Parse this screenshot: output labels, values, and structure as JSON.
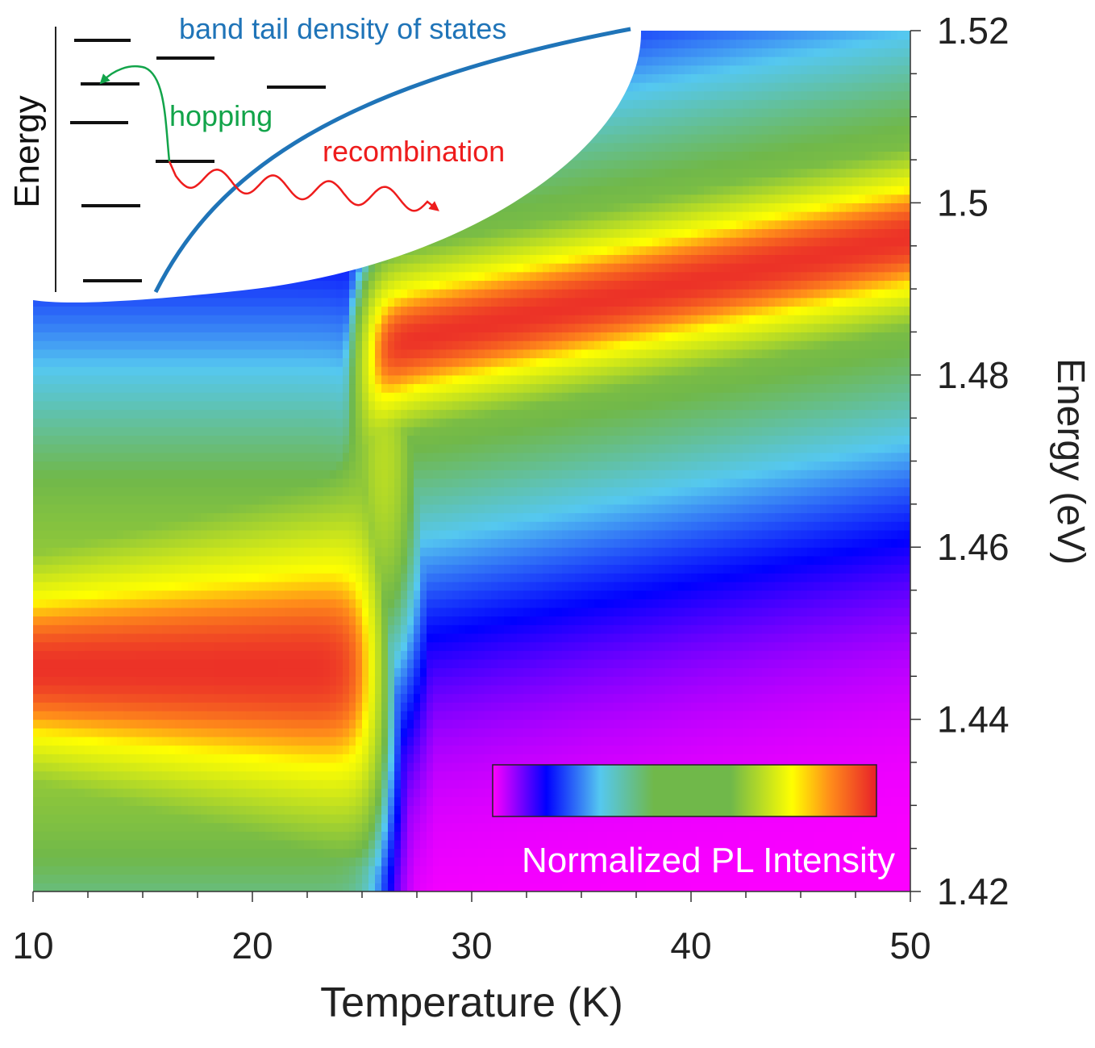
{
  "chart_data": {
    "type": "heatmap",
    "title": "",
    "xlabel": "Temperature (K)",
    "ylabel": "Energy (eV)",
    "xlim": [
      10,
      50
    ],
    "ylim": [
      1.42,
      1.52
    ],
    "x_ticks": [
      10,
      20,
      30,
      40,
      50
    ],
    "x_tick_labels": [
      "10",
      "20",
      "30",
      "40",
      "50"
    ],
    "y_ticks": [
      1.42,
      1.44,
      1.46,
      1.48,
      1.5,
      1.52
    ],
    "y_tick_labels": [
      "1.42",
      "1.44",
      "1.46",
      "1.48",
      "1.5",
      "1.52"
    ],
    "y_axis_side": "right",
    "colorscale": [
      "#ff00ff",
      "#0000ff",
      "#55c8f0",
      "#70b84a",
      "#ffff00",
      "#ff8c1a",
      "#e8202a"
    ],
    "colorbar_label": "Normalized PL Intensity",
    "colorbar_position": "bottom-right",
    "peaks": {
      "low_energy_band": {
        "energy_eV": 1.446,
        "temperature_range_K": [
          10,
          27
        ]
      },
      "high_energy_band": {
        "energy_eV_at_25K": 1.483,
        "energy_eV_at_50K": 1.496,
        "temperature_range_K": [
          25,
          50
        ]
      },
      "crossover_temperature_K": 26
    },
    "grid": false,
    "inset": {
      "axis_label": "Energy",
      "curve_label": "band tail density of states",
      "annotations": [
        "hopping",
        "recombination"
      ],
      "annotation_colors": {
        "curve": "#1f74b8",
        "hopping": "#12a44a",
        "recombination": "#ee1c1c"
      }
    }
  }
}
